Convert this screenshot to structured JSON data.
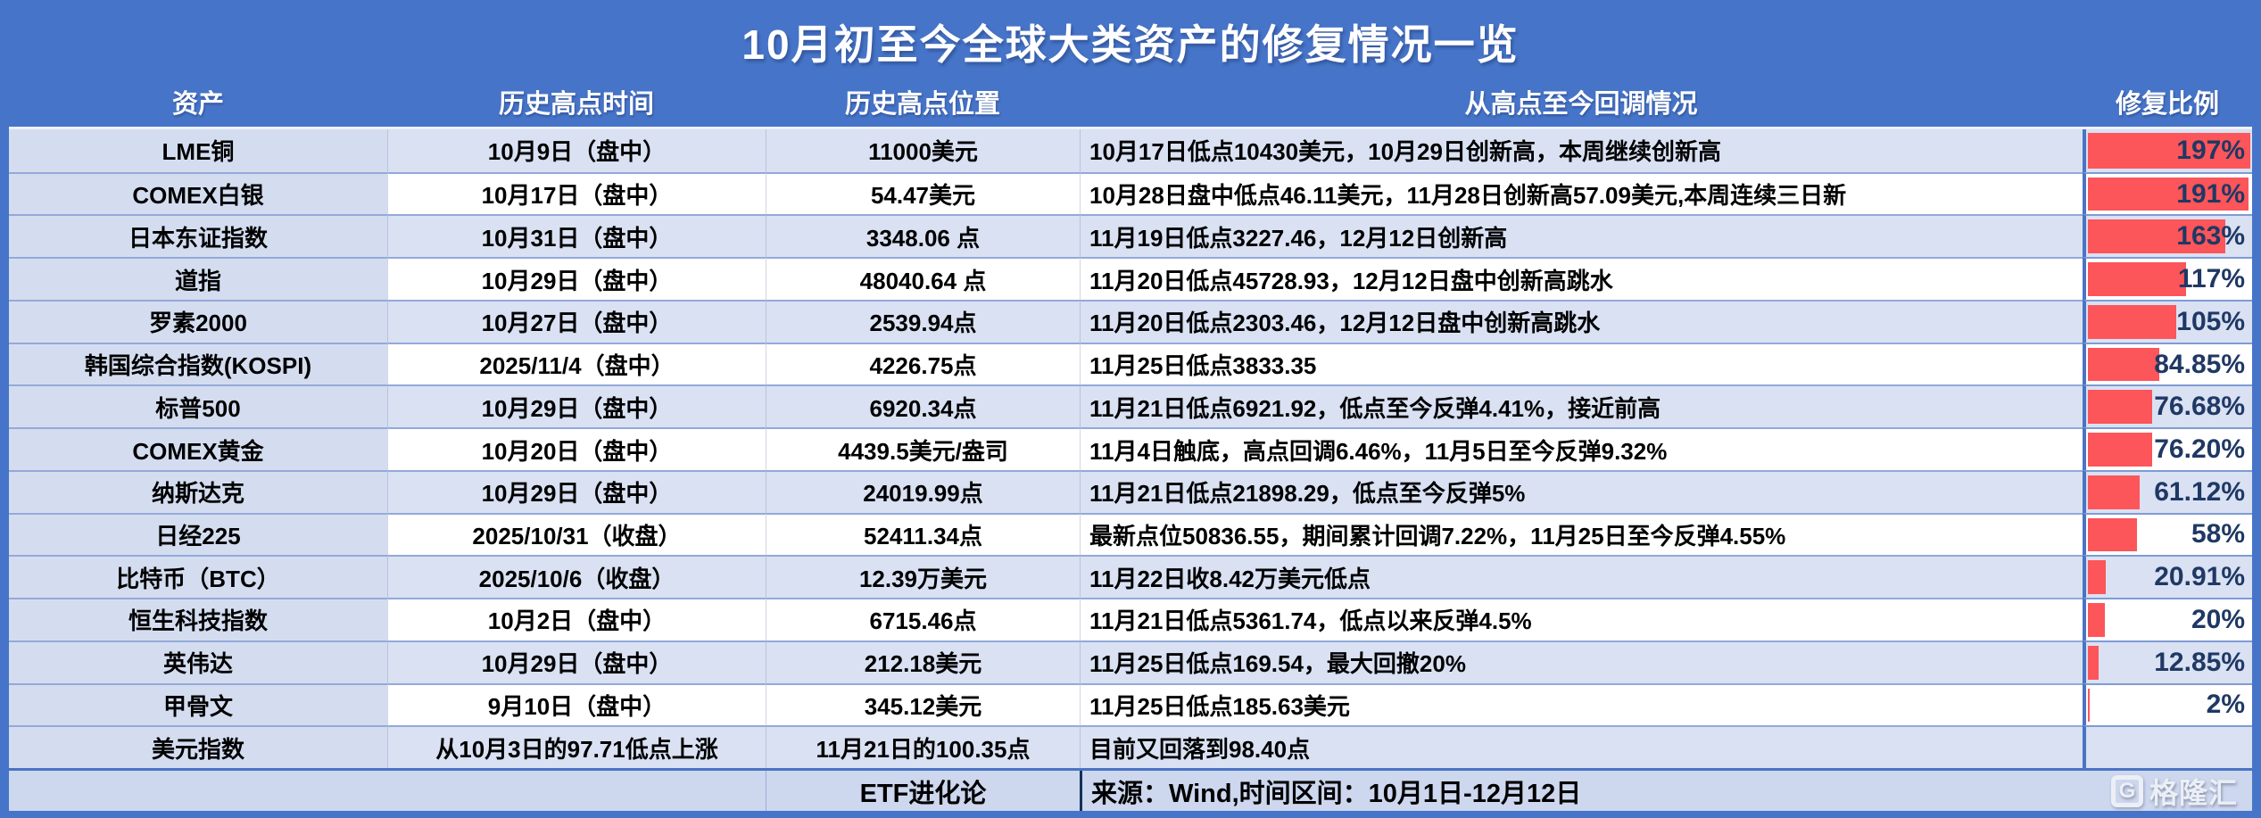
{
  "title": "10月初至今全球大类资产的修复情况一览",
  "columns": [
    "资产",
    "历史高点时间",
    "历史高点位置",
    "从高点至今回调情况",
    "修复比例"
  ],
  "bar_max": 197,
  "colors": {
    "header_blue": "#4674c8",
    "row_alt_blue": "#d9e1f3",
    "asset_col_blue": "#d4ddf0",
    "bar_red": "#fc555a",
    "pct_text_navy": "#1f3864"
  },
  "rows": [
    {
      "asset": "LME铜",
      "high_time": "10月9日（盘中）",
      "high_pos": "11000美元",
      "pullback": "10月17日低点10430美元，10月29日创新高，本周继续创新高",
      "pct_label": "197%",
      "pct_value": 197
    },
    {
      "asset": "COMEX白银",
      "high_time": "10月17日（盘中）",
      "high_pos": "54.47美元",
      "pullback": "10月28日盘中低点46.11美元，11月28日创新高57.09美元,本周连续三日新",
      "pct_label": "191%",
      "pct_value": 191
    },
    {
      "asset": "日本东证指数",
      "high_time": "10月31日（盘中）",
      "high_pos": "3348.06 点",
      "pullback": "11月19日低点3227.46，12月12日创新高",
      "pct_label": "163%",
      "pct_value": 163
    },
    {
      "asset": "道指",
      "high_time": "10月29日（盘中）",
      "high_pos": "48040.64 点",
      "pullback": "11月20日低点45728.93，12月12日盘中创新高跳水",
      "pct_label": "117%",
      "pct_value": 117
    },
    {
      "asset": "罗素2000",
      "high_time": "10月27日（盘中）",
      "high_pos": "2539.94点",
      "pullback": "11月20日低点2303.46，12月12日盘中创新高跳水",
      "pct_label": "105%",
      "pct_value": 105
    },
    {
      "asset": "韩国综合指数(KOSPI)",
      "high_time": "2025/11/4（盘中）",
      "high_pos": "4226.75点",
      "pullback": "11月25日低点3833.35",
      "pct_label": "84.85%",
      "pct_value": 84.85
    },
    {
      "asset": "标普500",
      "high_time": "10月29日（盘中）",
      "high_pos": "6920.34点",
      "pullback": "11月21日低点6921.92，低点至今反弹4.41%，接近前高",
      "pct_label": "76.68%",
      "pct_value": 76.68
    },
    {
      "asset": "COMEX黄金",
      "high_time": "10月20日（盘中）",
      "high_pos": "4439.5美元/盎司",
      "pullback": "11月4日触底，高点回调6.46%，11月5日至今反弹9.32%",
      "pct_label": "76.20%",
      "pct_value": 76.2
    },
    {
      "asset": "纳斯达克",
      "high_time": "10月29日（盘中）",
      "high_pos": "24019.99点",
      "pullback": "11月21日低点21898.29，低点至今反弹5%",
      "pct_label": "61.12%",
      "pct_value": 61.12
    },
    {
      "asset": "日经225",
      "high_time": "2025/10/31（收盘）",
      "high_pos": "52411.34点",
      "pullback": "最新点位50836.55，期间累计回调7.22%，11月25日至今反弹4.55%",
      "pct_label": "58%",
      "pct_value": 58
    },
    {
      "asset": "比特币（BTC）",
      "high_time": "2025/10/6（收盘）",
      "high_pos": "12.39万美元",
      "pullback": "11月22日收8.42万美元低点",
      "pct_label": "20.91%",
      "pct_value": 20.91
    },
    {
      "asset": "恒生科技指数",
      "high_time": "10月2日（盘中）",
      "high_pos": "6715.46点",
      "pullback": "11月21日低点5361.74，低点以来反弹4.5%",
      "pct_label": "20%",
      "pct_value": 20
    },
    {
      "asset": "英伟达",
      "high_time": "10月29日（盘中）",
      "high_pos": "212.18美元",
      "pullback": "11月25日低点169.54，最大回撤20%",
      "pct_label": "12.85%",
      "pct_value": 12.85
    },
    {
      "asset": "甲骨文",
      "high_time": "9月10日（盘中）",
      "high_pos": "345.12美元",
      "pullback": "11月25日低点185.63美元",
      "pct_label": "2%",
      "pct_value": 2
    },
    {
      "asset": "美元指数",
      "high_time": "从10月3日的97.71低点上涨",
      "high_pos": "11月21日的100.35点",
      "pullback": "目前又回落到98.40点",
      "pct_label": "",
      "pct_value": null
    }
  ],
  "footer": {
    "brand": "ETF进化论",
    "source": "来源：Wind,时间区间：10月1日-12月12日"
  },
  "watermark": {
    "icon": "G",
    "brand": "格隆汇"
  },
  "chart_data": {
    "type": "table",
    "title": "10月初至今全球大类资产的修复情况一览",
    "columns": [
      "资产",
      "历史高点时间",
      "历史高点位置",
      "从高点至今回调情况",
      "修复比例"
    ],
    "categories": [
      "LME铜",
      "COMEX白银",
      "日本东证指数",
      "道指",
      "罗素2000",
      "韩国综合指数(KOSPI)",
      "标普500",
      "COMEX黄金",
      "纳斯达克",
      "日经225",
      "比特币（BTC）",
      "恒生科技指数",
      "英伟达",
      "甲骨文",
      "美元指数"
    ],
    "series": [
      {
        "name": "修复比例(%)",
        "values": [
          197,
          191,
          163,
          117,
          105,
          84.85,
          76.68,
          76.2,
          61.12,
          58,
          20.91,
          20,
          12.85,
          2,
          null
        ]
      }
    ],
    "bar_max": 197,
    "bar_style": "in-cell red data bars, navy right-aligned labels",
    "source_note": "来源：Wind,时间区间：10月1日-12月12日"
  }
}
